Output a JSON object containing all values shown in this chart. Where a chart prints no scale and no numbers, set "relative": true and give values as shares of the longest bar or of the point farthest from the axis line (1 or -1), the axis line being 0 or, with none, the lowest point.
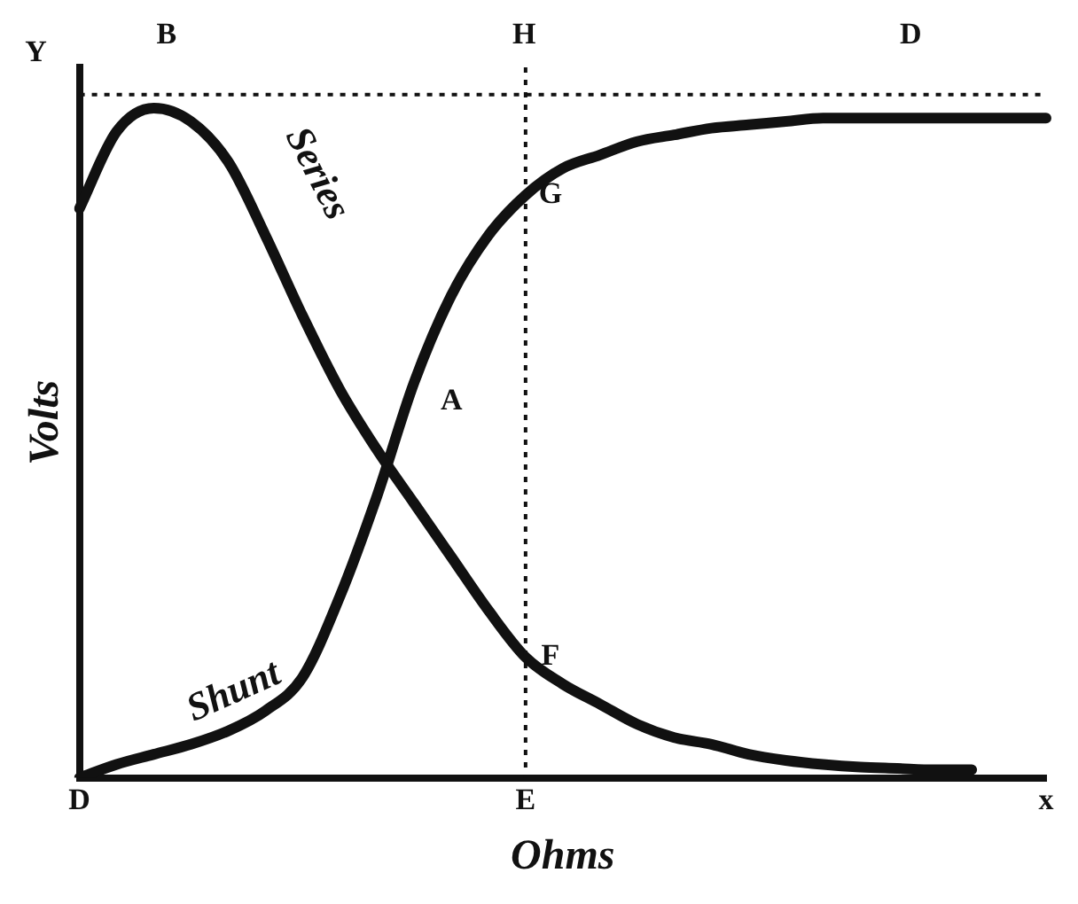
{
  "chart_data": {
    "type": "line",
    "relative": true,
    "xlabel": "Ohms",
    "ylabel": "Volts",
    "categories": [
      "D",
      null,
      null,
      null,
      null,
      null,
      null,
      null,
      null,
      null,
      null,
      null,
      "E",
      null,
      null,
      null,
      null,
      null,
      null,
      null,
      null,
      null,
      null,
      null,
      null,
      null,
      "x"
    ],
    "series": [
      {
        "name": "Series",
        "color": "#111111",
        "values": [
          0.85,
          0.965,
          1,
          0.98,
          0.92,
          0.81,
          0.69,
          0.58,
          0.49,
          0.41,
          0.33,
          0.25,
          0.18,
          0.14,
          0.11,
          0.08,
          0.06,
          0.05,
          0.035,
          0.026,
          0.02,
          0.016,
          0.014,
          0.012,
          0.012,
          null,
          null
        ]
      },
      {
        "name": "Shunt",
        "color": "#111111",
        "values": [
          0,
          0.02,
          0.035,
          0.05,
          0.07,
          0.1,
          0.15,
          0.27,
          0.42,
          0.59,
          0.72,
          0.81,
          0.87,
          0.91,
          0.93,
          0.95,
          0.96,
          0.97,
          0.975,
          0.98,
          0.985,
          0.985,
          0.985,
          0.985,
          0.985,
          0.985,
          0.985
        ]
      }
    ],
    "ref_lines": [
      {
        "axis": "y",
        "value": 1.02,
        "label": null,
        "line_style": "dotted",
        "color": "#111111"
      },
      {
        "axis": "x",
        "value": "E",
        "label": null,
        "line_style": "dotted",
        "color": "#111111"
      }
    ],
    "annotations": [
      "Y",
      "B",
      "H",
      "D",
      "A",
      {
        "text": "G",
        "x": "E",
        "y": 0.87
      },
      {
        "text": "F",
        "x": "E",
        "y": 0.18
      }
    ],
    "grid": false,
    "legend": false,
    "marker": "none",
    "line_style": "solid"
  }
}
